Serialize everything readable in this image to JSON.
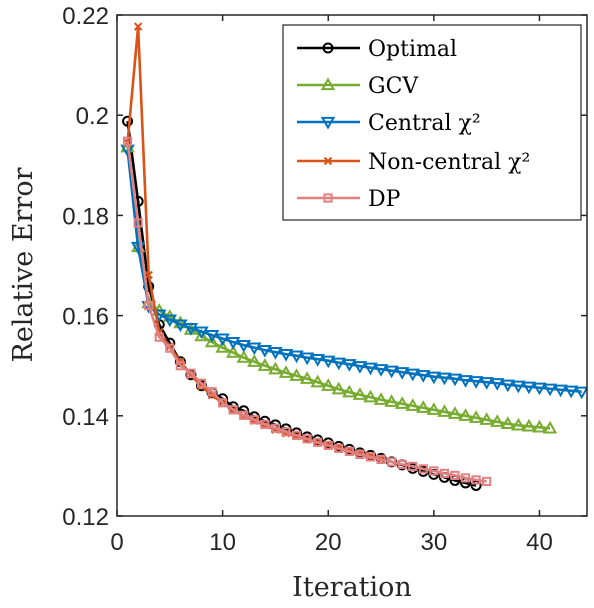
{
  "chart_data": {
    "type": "line",
    "xlabel": "Iteration",
    "ylabel": "Relative Error",
    "xlim": [
      0,
      44.5
    ],
    "ylim": [
      0.12,
      0.22
    ],
    "xticks": [
      0,
      10,
      20,
      30,
      40
    ],
    "yticks": [
      0.12,
      0.14,
      0.16,
      0.18,
      0.2,
      0.22
    ],
    "xtick_labels": [
      "0",
      "10",
      "20",
      "30",
      "40"
    ],
    "ytick_labels": [
      "0.12",
      "0.14",
      "0.16",
      "0.18",
      "0.2",
      "0.22"
    ],
    "grid": false,
    "legend_position": "top-right",
    "series": [
      {
        "name": "Optimal",
        "color": "#000000",
        "marker": "circle",
        "values": [
          [
            1,
            0.1988
          ],
          [
            2,
            0.1828
          ],
          [
            3,
            0.1658
          ],
          [
            4,
            0.1582
          ],
          [
            5,
            0.1545
          ],
          [
            6,
            0.1508
          ],
          [
            7,
            0.1482
          ],
          [
            8,
            0.146
          ],
          [
            9,
            0.1446
          ],
          [
            10,
            0.1434
          ],
          [
            11,
            0.1418
          ],
          [
            12,
            0.141
          ],
          [
            13,
            0.1398
          ],
          [
            14,
            0.1389
          ],
          [
            15,
            0.1382
          ],
          [
            16,
            0.1374
          ],
          [
            17,
            0.1366
          ],
          [
            18,
            0.1358
          ],
          [
            19,
            0.1352
          ],
          [
            20,
            0.1346
          ],
          [
            21,
            0.1339
          ],
          [
            22,
            0.1333
          ],
          [
            23,
            0.1326
          ],
          [
            24,
            0.1321
          ],
          [
            25,
            0.1315
          ],
          [
            26,
            0.1308
          ],
          [
            27,
            0.1302
          ],
          [
            28,
            0.1295
          ],
          [
            29,
            0.1289
          ],
          [
            30,
            0.1283
          ],
          [
            31,
            0.1277
          ],
          [
            32,
            0.1271
          ],
          [
            33,
            0.1266
          ],
          [
            34,
            0.1261
          ]
        ]
      },
      {
        "name": "GCV",
        "color": "#77AC30",
        "marker": "triangle-up",
        "values": [
          [
            1,
            0.1936
          ],
          [
            2,
            0.1737
          ],
          [
            3,
            0.1625
          ],
          [
            4,
            0.161
          ],
          [
            5,
            0.1598
          ],
          [
            6,
            0.1585
          ],
          [
            7,
            0.1572
          ],
          [
            8,
            0.1559
          ],
          [
            9,
            0.1547
          ],
          [
            10,
            0.1536
          ],
          [
            11,
            0.1526
          ],
          [
            12,
            0.1516
          ],
          [
            13,
            0.1508
          ],
          [
            14,
            0.15
          ],
          [
            15,
            0.1493
          ],
          [
            16,
            0.1486
          ],
          [
            17,
            0.148
          ],
          [
            18,
            0.1474
          ],
          [
            19,
            0.1467
          ],
          [
            20,
            0.146
          ],
          [
            21,
            0.1453
          ],
          [
            22,
            0.1447
          ],
          [
            23,
            0.1442
          ],
          [
            24,
            0.1437
          ],
          [
            25,
            0.1432
          ],
          [
            26,
            0.1428
          ],
          [
            27,
            0.1424
          ],
          [
            28,
            0.142
          ],
          [
            29,
            0.1416
          ],
          [
            30,
            0.1412
          ],
          [
            31,
            0.1408
          ],
          [
            32,
            0.1404
          ],
          [
            33,
            0.14
          ],
          [
            34,
            0.1396
          ],
          [
            35,
            0.1392
          ],
          [
            36,
            0.1388
          ],
          [
            37,
            0.1384
          ],
          [
            38,
            0.1381
          ],
          [
            39,
            0.1379
          ],
          [
            40,
            0.1377
          ],
          [
            41,
            0.1375
          ]
        ]
      },
      {
        "name": "Central χ²",
        "color": "#0072BD",
        "marker": "triangle-down",
        "values": [
          [
            1,
            0.1931
          ],
          [
            2,
            0.1737
          ],
          [
            3,
            0.1619
          ],
          [
            4,
            0.1602
          ],
          [
            5,
            0.1592
          ],
          [
            6,
            0.1582
          ],
          [
            7,
            0.1575
          ],
          [
            8,
            0.1568
          ],
          [
            9,
            0.1561
          ],
          [
            10,
            0.1554
          ],
          [
            11,
            0.1547
          ],
          [
            12,
            0.1541
          ],
          [
            13,
            0.1536
          ],
          [
            14,
            0.1531
          ],
          [
            15,
            0.1527
          ],
          [
            16,
            0.1523
          ],
          [
            17,
            0.152
          ],
          [
            18,
            0.1516
          ],
          [
            19,
            0.1513
          ],
          [
            20,
            0.151
          ],
          [
            21,
            0.1506
          ],
          [
            22,
            0.1503
          ],
          [
            23,
            0.1499
          ],
          [
            24,
            0.1496
          ],
          [
            25,
            0.1493
          ],
          [
            26,
            0.149
          ],
          [
            27,
            0.1487
          ],
          [
            28,
            0.1484
          ],
          [
            29,
            0.1481
          ],
          [
            30,
            0.1478
          ],
          [
            31,
            0.1476
          ],
          [
            32,
            0.1474
          ],
          [
            33,
            0.1471
          ],
          [
            34,
            0.1469
          ],
          [
            35,
            0.1467
          ],
          [
            36,
            0.1465
          ],
          [
            37,
            0.1462
          ],
          [
            38,
            0.146
          ],
          [
            39,
            0.1458
          ],
          [
            40,
            0.1456
          ],
          [
            41,
            0.1454
          ],
          [
            42,
            0.1452
          ],
          [
            43,
            0.145
          ],
          [
            44,
            0.1448
          ]
        ]
      },
      {
        "name": "Non-central χ²",
        "color": "#D95319",
        "marker": "x",
        "values": [
          [
            1,
            0.1945
          ],
          [
            2,
            0.2177
          ],
          [
            3,
            0.1681
          ],
          [
            4,
            0.1567
          ],
          [
            5,
            0.1538
          ],
          [
            6,
            0.1508
          ],
          [
            7,
            0.1481
          ],
          [
            8,
            0.1459
          ],
          [
            9,
            0.1441
          ],
          [
            10,
            0.1426
          ],
          [
            11,
            0.1411
          ],
          [
            12,
            0.14
          ],
          [
            13,
            0.139
          ],
          [
            14,
            0.1381
          ],
          [
            15,
            0.1372
          ],
          [
            16,
            0.1365
          ],
          [
            17,
            0.1359
          ],
          [
            18,
            0.1353
          ],
          [
            19,
            0.1347
          ],
          [
            20,
            0.1342
          ],
          [
            21,
            0.1336
          ],
          [
            22,
            0.133
          ],
          [
            23,
            0.1325
          ],
          [
            24,
            0.132
          ],
          [
            25,
            0.1314
          ]
        ]
      },
      {
        "name": "DP",
        "color": "#E08080",
        "marker": "square",
        "values": [
          [
            1,
            0.1948
          ],
          [
            2,
            0.1785
          ],
          [
            3,
            0.162
          ],
          [
            4,
            0.1557
          ],
          [
            5,
            0.1535
          ],
          [
            6,
            0.15
          ],
          [
            7,
            0.1485
          ],
          [
            8,
            0.1465
          ],
          [
            9,
            0.1448
          ],
          [
            10,
            0.1426
          ],
          [
            11,
            0.1412
          ],
          [
            12,
            0.1401
          ],
          [
            13,
            0.1392
          ],
          [
            14,
            0.1383
          ],
          [
            15,
            0.1375
          ],
          [
            16,
            0.1368
          ],
          [
            17,
            0.1361
          ],
          [
            18,
            0.1354
          ],
          [
            19,
            0.1347
          ],
          [
            20,
            0.1341
          ],
          [
            21,
            0.1335
          ],
          [
            22,
            0.1329
          ],
          [
            23,
            0.1323
          ],
          [
            24,
            0.1318
          ],
          [
            25,
            0.1313
          ],
          [
            26,
            0.1308
          ],
          [
            27,
            0.1303
          ],
          [
            28,
            0.1299
          ],
          [
            29,
            0.1294
          ],
          [
            30,
            0.129
          ],
          [
            31,
            0.1285
          ],
          [
            32,
            0.1281
          ],
          [
            33,
            0.1276
          ],
          [
            34,
            0.1272
          ],
          [
            35,
            0.1269
          ]
        ]
      }
    ]
  }
}
